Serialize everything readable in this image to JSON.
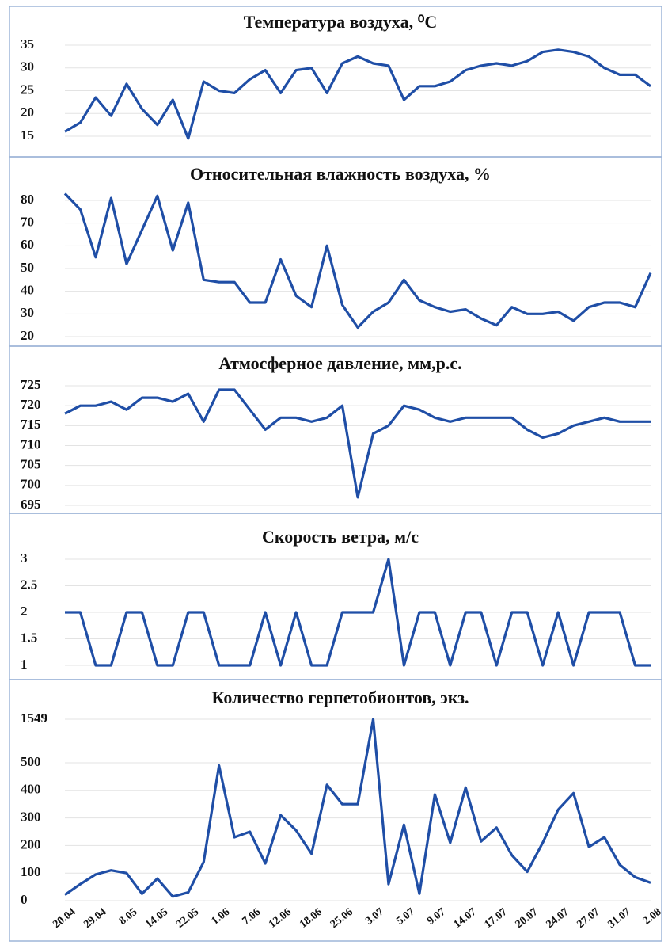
{
  "chart_data": [
    {
      "type": "line",
      "title": "Температура воздуха, ⁰C",
      "color": "#1f4ea6",
      "grid": true,
      "ylim": [
        15,
        35
      ],
      "yticks": [
        15,
        20,
        25,
        30,
        35
      ],
      "values": [
        16,
        18,
        23.5,
        19.5,
        26.5,
        21,
        17.5,
        23,
        14.5,
        27,
        25,
        24.5,
        27.5,
        29.5,
        24.5,
        29.5,
        30,
        24.5,
        31,
        32.5,
        31,
        30.5,
        23,
        26,
        26,
        27,
        29.5,
        30.5,
        31,
        30.5,
        31.5,
        33.5,
        34,
        33.5,
        32.5,
        30,
        28.5,
        28.5,
        26
      ]
    },
    {
      "type": "line",
      "title": "Относительная влажность воздуха, %",
      "color": "#1f4ea6",
      "grid": true,
      "ylim": [
        20,
        80
      ],
      "yticks": [
        20,
        30,
        40,
        50,
        60,
        70,
        80
      ],
      "values": [
        83,
        76,
        55,
        81,
        52,
        67,
        82,
        58,
        79,
        45,
        44,
        44,
        35,
        35,
        54,
        38,
        33,
        60,
        34,
        24,
        31,
        35,
        45,
        36,
        33,
        31,
        32,
        28,
        25,
        33,
        30,
        30,
        31,
        27,
        33,
        35,
        35,
        33,
        48
      ]
    },
    {
      "type": "line",
      "title": "Атмосферное давление, мм,р.с.",
      "color": "#1f4ea6",
      "grid": true,
      "ylim": [
        695,
        725
      ],
      "yticks": [
        695,
        700,
        705,
        710,
        715,
        720,
        725
      ],
      "values": [
        718,
        720,
        720,
        721,
        719,
        722,
        722,
        721,
        723,
        716,
        724,
        724,
        719,
        714,
        717,
        717,
        716,
        717,
        720,
        697,
        713,
        715,
        720,
        719,
        717,
        716,
        717,
        717,
        717,
        717,
        714,
        712,
        713,
        715,
        716,
        717,
        716,
        716,
        716
      ]
    },
    {
      "type": "line",
      "title": "Скорость ветра, м/с",
      "color": "#1f4ea6",
      "grid": true,
      "ylim": [
        1,
        3
      ],
      "yticks": [
        1,
        1.5,
        2,
        2.5,
        3
      ],
      "values": [
        2,
        2,
        1,
        1,
        2,
        2,
        1,
        1,
        2,
        2,
        1,
        1,
        1,
        2,
        1,
        2,
        1,
        1,
        2,
        2,
        2,
        3,
        1,
        2,
        2,
        1,
        2,
        2,
        1,
        2,
        2,
        1,
        2,
        1,
        2,
        2,
        2,
        1,
        1
      ]
    },
    {
      "type": "line",
      "title": "Количество герпетобионтов, экз.",
      "color": "#1f4ea6",
      "grid": true,
      "y_break": true,
      "ylim": [
        0,
        1549
      ],
      "yticks": [
        0,
        100,
        200,
        300,
        400,
        500,
        1549
      ],
      "categories": [
        "20.04",
        null,
        "29.04",
        null,
        "8.05",
        null,
        "14.05",
        null,
        "22.05",
        null,
        "1.06",
        null,
        "7.06",
        null,
        "12.06",
        null,
        "18.06",
        null,
        "25.06",
        null,
        "3.07",
        null,
        "5.07",
        null,
        "9.07",
        null,
        "14.07",
        null,
        "17.07",
        null,
        "20.07",
        null,
        "24.07",
        null,
        "27.07",
        null,
        "31.07",
        null,
        "2.08"
      ],
      "values": [
        21,
        60,
        95,
        110,
        100,
        25,
        80,
        15,
        30,
        140,
        490,
        230,
        250,
        135,
        310,
        255,
        170,
        420,
        350,
        350,
        1549,
        60,
        275,
        25,
        385,
        210,
        410,
        215,
        265,
        165,
        105,
        210,
        330,
        390,
        195,
        230,
        130,
        85,
        65
      ]
    }
  ]
}
